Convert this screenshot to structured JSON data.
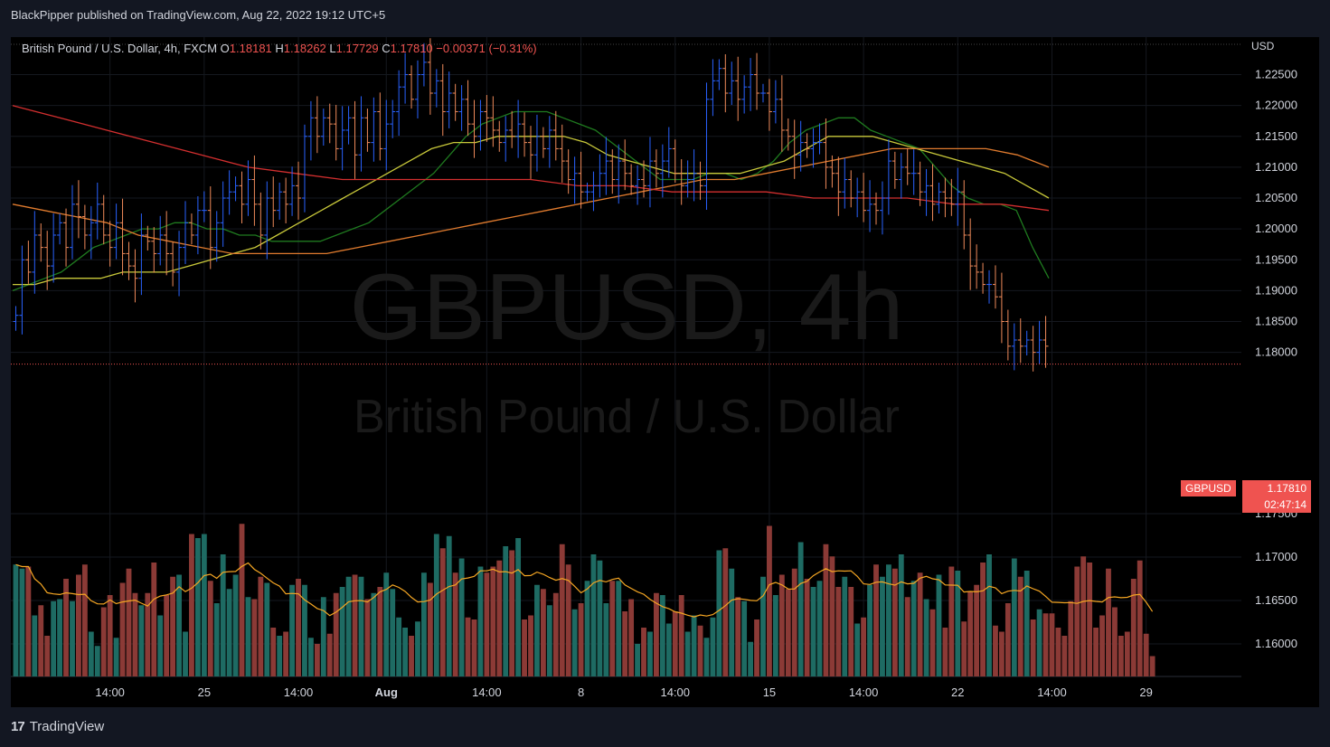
{
  "header": {
    "published_by": "BlackPipper published on TradingView.com, Aug 22, 2022 19:12 UTC+5"
  },
  "legend": {
    "symbol": "British Pound / U.S. Dollar, 4h, FXCM",
    "o_label": "O",
    "o_value": "1.18181",
    "h_label": "H",
    "h_value": "1.18262",
    "l_label": "L",
    "l_value": "1.17729",
    "c_label": "C",
    "c_value": "1.17810",
    "change": "−0.00371 (−0.31%)"
  },
  "watermark": {
    "line1": "GBPUSD, 4h",
    "line2": "British Pound / U.S. Dollar"
  },
  "price_tag": {
    "symbol": "GBPUSD",
    "price": "1.17810",
    "countdown": "02:47:14"
  },
  "footer": {
    "brand": "TradingView",
    "logo": "17"
  },
  "colors": {
    "bg": "#000000",
    "frame": "#131722",
    "up": "#2962ff",
    "down": "#ef8a5a",
    "vol_up": "#1e6b63",
    "vol_down": "#8b3a36",
    "ma_fast": "#1f7a1f",
    "ma_mid": "#c8c83a",
    "ma_slow": "#e07b2e",
    "ma_long": "#d32f2f",
    "vol_ma": "#f5a623",
    "last": "#ef5350"
  },
  "chart_data": {
    "type": "ohlc",
    "currency": "USD",
    "yticks": [
      "1.22500",
      "1.22000",
      "1.21500",
      "1.21000",
      "1.20500",
      "1.20000",
      "1.19500",
      "1.19000",
      "1.18500",
      "1.18000",
      "1.17500",
      "1.17000",
      "1.16500",
      "1.16000"
    ],
    "ytick_values": [
      1.225,
      1.22,
      1.215,
      1.21,
      1.205,
      1.2,
      1.195,
      1.19,
      1.185,
      1.18,
      1.175,
      1.17,
      1.165,
      1.16
    ],
    "xticks": [
      "14:00",
      "25",
      "14:00",
      "Aug",
      "14:00",
      "8",
      "14:00",
      "15",
      "14:00",
      "22",
      "14:00",
      "29"
    ],
    "xtick_bars": [
      15,
      30,
      45,
      59,
      75,
      90,
      105,
      120,
      135,
      150,
      165,
      180
    ],
    "ylim": [
      1.1565,
      1.2305
    ],
    "last_price": 1.1781,
    "closes": [
      1.186,
      1.195,
      1.193,
      1.199,
      1.197,
      1.194,
      1.199,
      1.201,
      1.197,
      1.204,
      1.202,
      1.199,
      1.201,
      1.204,
      1.199,
      1.197,
      1.201,
      1.196,
      1.194,
      1.192,
      1.199,
      1.198,
      1.196,
      1.199,
      1.196,
      1.193,
      1.197,
      1.201,
      1.199,
      1.203,
      1.203,
      1.197,
      1.201,
      1.205,
      1.206,
      1.207,
      1.204,
      1.208,
      1.204,
      1.199,
      1.205,
      1.203,
      1.206,
      1.204,
      1.207,
      1.205,
      1.215,
      1.218,
      1.215,
      1.218,
      1.217,
      1.213,
      1.216,
      1.218,
      1.212,
      1.218,
      1.214,
      1.219,
      1.213,
      1.217,
      1.219,
      1.223,
      1.225,
      1.221,
      1.225,
      1.227,
      1.222,
      1.224,
      1.219,
      1.222,
      1.219,
      1.221,
      1.217,
      1.215,
      1.219,
      1.218,
      1.216,
      1.214,
      1.216,
      1.215,
      1.217,
      1.214,
      1.212,
      1.215,
      1.213,
      1.216,
      1.213,
      1.211,
      1.208,
      1.209,
      1.206,
      1.206,
      1.207,
      1.209,
      1.211,
      1.208,
      1.211,
      1.209,
      1.207,
      1.208,
      1.207,
      1.211,
      1.209,
      1.211,
      1.213,
      1.209,
      1.207,
      1.208,
      1.209,
      1.207,
      1.221,
      1.224,
      1.226,
      1.222,
      1.224,
      1.221,
      1.223,
      1.225,
      1.222,
      1.222,
      1.219,
      1.221,
      1.216,
      1.215,
      1.212,
      1.214,
      1.213,
      1.214,
      1.214,
      1.21,
      1.209,
      1.206,
      1.208,
      1.205,
      1.206,
      1.203,
      1.204,
      1.203,
      1.205,
      1.211,
      1.208,
      1.21,
      1.209,
      1.209,
      1.206,
      1.207,
      1.204,
      1.206,
      1.205,
      1.204,
      1.206,
      1.199,
      1.194,
      1.193,
      1.191,
      1.191,
      1.189,
      1.185,
      1.181,
      1.182,
      1.181,
      1.182,
      1.18,
      1.182,
      1.181
    ],
    "volume_closes_up": "teal bars when close ≥ open",
    "series": [
      {
        "name": "MA fast",
        "values": [
          1.19,
          1.191,
          1.192,
          1.193,
          1.195,
          1.197,
          1.198,
          1.199,
          1.2,
          1.2,
          1.201,
          1.201,
          1.2,
          1.2,
          1.199,
          1.199,
          1.198,
          1.198,
          1.198,
          1.198,
          1.199,
          1.2,
          1.201,
          1.203,
          1.205,
          1.207,
          1.209,
          1.212,
          1.215,
          1.217,
          1.218,
          1.219,
          1.219,
          1.219,
          1.218,
          1.217,
          1.216,
          1.214,
          1.212,
          1.21,
          1.208,
          1.208,
          1.208,
          1.209,
          1.209,
          1.208,
          1.209,
          1.211,
          1.214,
          1.216,
          1.217,
          1.218,
          1.218,
          1.216,
          1.215,
          1.214,
          1.213,
          1.21,
          1.207,
          1.205,
          1.204,
          1.204,
          1.203,
          1.197,
          1.192
        ]
      },
      {
        "name": "MA mid",
        "values": [
          1.191,
          1.191,
          1.192,
          1.192,
          1.192,
          1.193,
          1.193,
          1.193,
          1.194,
          1.195,
          1.196,
          1.197,
          1.199,
          1.201,
          1.203,
          1.205,
          1.207,
          1.209,
          1.211,
          1.213,
          1.214,
          1.214,
          1.215,
          1.215,
          1.215,
          1.215,
          1.214,
          1.212,
          1.211,
          1.21,
          1.209,
          1.209,
          1.209,
          1.209,
          1.21,
          1.211,
          1.213,
          1.215,
          1.215,
          1.215,
          1.214,
          1.213,
          1.212,
          1.211,
          1.21,
          1.209,
          1.207,
          1.205
        ]
      },
      {
        "name": "MA slow",
        "values": [
          1.204,
          1.203,
          1.202,
          1.201,
          1.199,
          1.198,
          1.197,
          1.196,
          1.196,
          1.196,
          1.196,
          1.197,
          1.198,
          1.199,
          1.2,
          1.201,
          1.202,
          1.203,
          1.204,
          1.205,
          1.206,
          1.207,
          1.208,
          1.208,
          1.209,
          1.21,
          1.211,
          1.212,
          1.213,
          1.213,
          1.213,
          1.213,
          1.212,
          1.21
        ]
      },
      {
        "name": "MA long",
        "values": [
          1.22,
          1.218,
          1.216,
          1.214,
          1.212,
          1.21,
          1.209,
          1.208,
          1.208,
          1.208,
          1.208,
          1.208,
          1.207,
          1.207,
          1.206,
          1.206,
          1.206,
          1.205,
          1.205,
          1.205,
          1.204,
          1.204,
          1.203
        ]
      }
    ],
    "volume": [
      55,
      53,
      54,
      30,
      35,
      20,
      37,
      38,
      48,
      37,
      50,
      55,
      22,
      15,
      34,
      40,
      19,
      46,
      53,
      41,
      35,
      41,
      56,
      30,
      40,
      49,
      50,
      22,
      70,
      68,
      70,
      47,
      36,
      60,
      43,
      50,
      75,
      39,
      38,
      49,
      46,
      24,
      20,
      22,
      45,
      48,
      45,
      19,
      16,
      39,
      21,
      41,
      44,
      49,
      50,
      49,
      38,
      41,
      44,
      51,
      43,
      29,
      24,
      20,
      27,
      51,
      46,
      70,
      63,
      69,
      51,
      58,
      29,
      28,
      54,
      51,
      54,
      57,
      64,
      62,
      68,
      28,
      30,
      45,
      43,
      35,
      41,
      65,
      55,
      33,
      36,
      47,
      60,
      57,
      36,
      47,
      47,
      32,
      38,
      16,
      24,
      22,
      41,
      40,
      26,
      32,
      40,
      22,
      30,
      25,
      19,
      29,
      62,
      63,
      53,
      39,
      37,
      17,
      28,
      49,
      74,
      40,
      50,
      43,
      53,
      66,
      48,
      44,
      47,
      65,
      59,
      44,
      49,
      44,
      26,
      29,
      45,
      55,
      49,
      55,
      53,
      60,
      39,
      47,
      51,
      38,
      33,
      50,
      24,
      54,
      52,
      27,
      42,
      45,
      56,
      60,
      25,
      22,
      36,
      58,
      49,
      52,
      28,
      33,
      31,
      31,
      24,
      20,
      37,
      54,
      59,
      56,
      24,
      30,
      53,
      34,
      20,
      22,
      48,
      57,
      21,
      10
    ]
  }
}
